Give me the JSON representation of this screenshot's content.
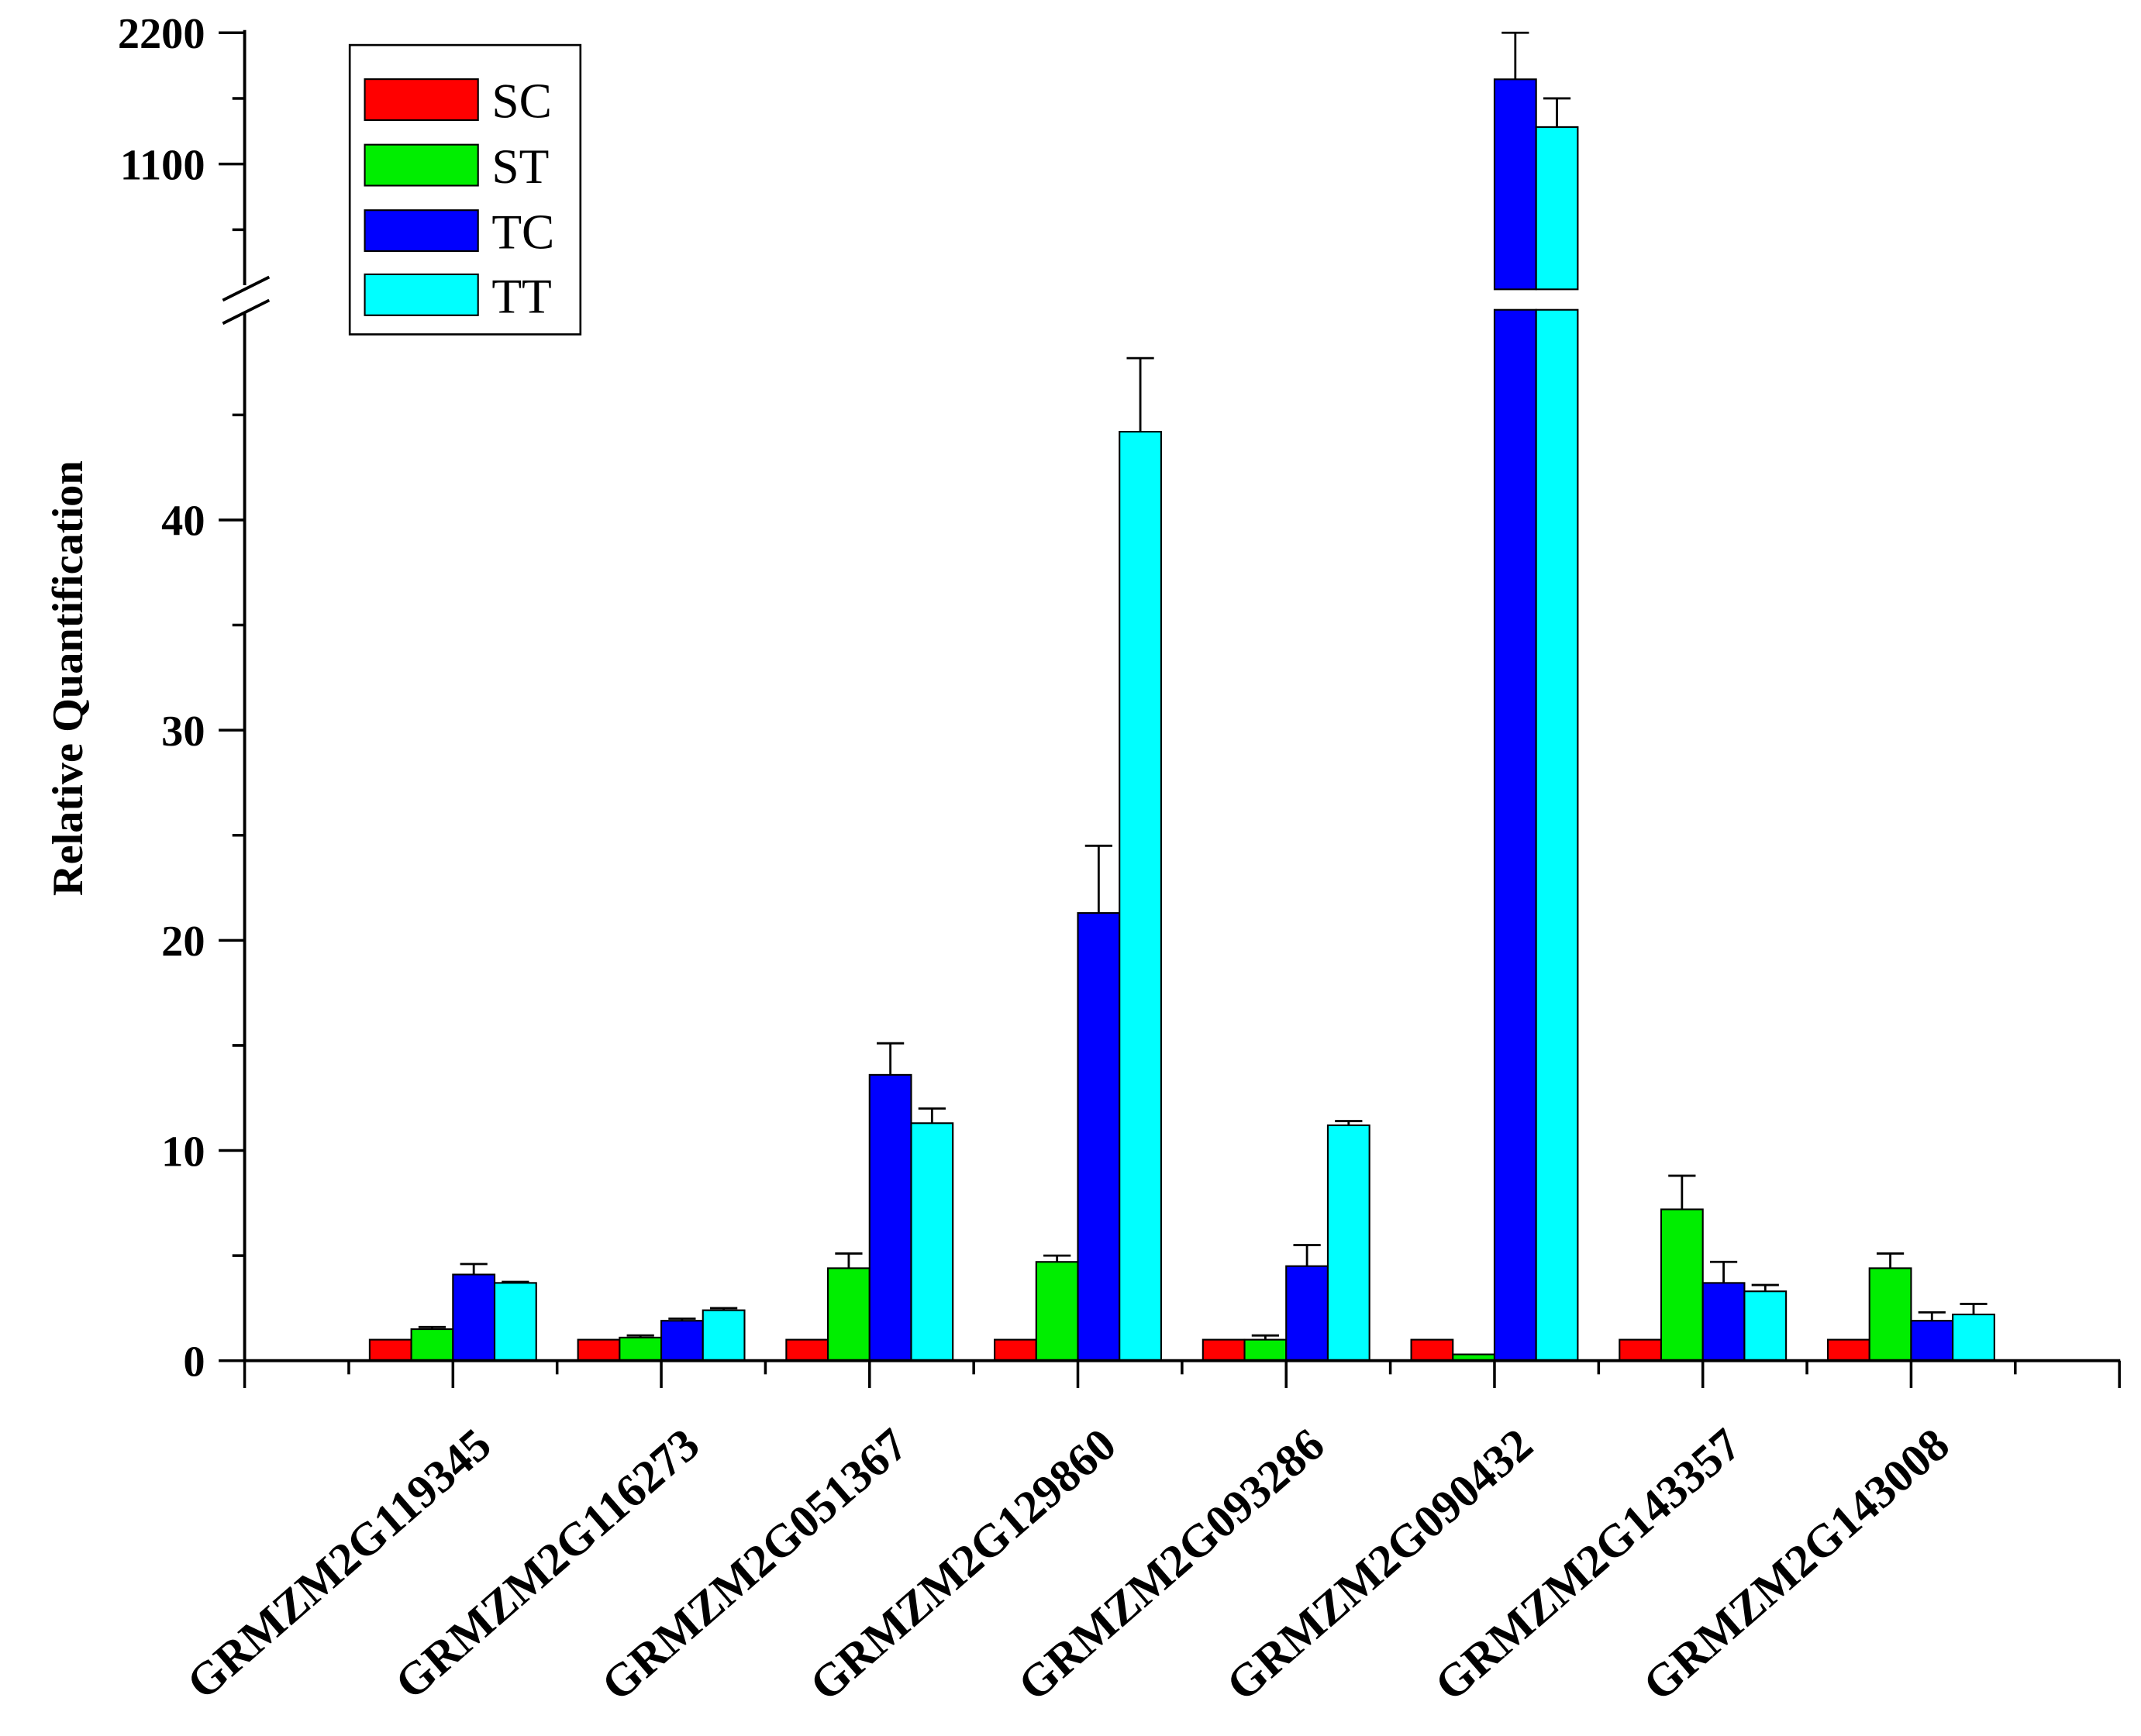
{
  "chart_data": {
    "type": "bar",
    "ylabel": "Relative Quantification",
    "categories": [
      "GRMZM2G119345",
      "GRMZM2G116273",
      "GRMZM2G051367",
      "GRMZM2G129860",
      "GRMZM2G093286",
      "GRMZM2G090432",
      "GRMZM2G143357",
      "GRMZM2G143008"
    ],
    "series": [
      {
        "name": "SC",
        "color": "#ff0000",
        "values": [
          1.0,
          1.0,
          1.0,
          1.0,
          1.0,
          1.0,
          1.0,
          1.0
        ],
        "errors_upper": [
          0,
          0,
          0,
          0,
          0,
          0,
          0,
          0
        ]
      },
      {
        "name": "ST",
        "color": "#00ee00",
        "values": [
          1.5,
          1.1,
          4.4,
          4.7,
          1.0,
          0.3,
          7.2,
          4.4
        ],
        "errors_upper": [
          0.1,
          0.1,
          0.7,
          0.3,
          0.2,
          0,
          1.6,
          0.7
        ]
      },
      {
        "name": "TC",
        "color": "#0000ff",
        "values": [
          4.1,
          1.9,
          13.6,
          21.3,
          4.5,
          1810,
          3.7,
          1.9
        ],
        "errors_upper": [
          0.5,
          0.1,
          1.5,
          3.2,
          1.0,
          390,
          1.0,
          0.4
        ]
      },
      {
        "name": "TT",
        "color": "#00ffff",
        "values": [
          3.7,
          2.4,
          11.3,
          44.2,
          11.2,
          1410,
          3.3,
          2.2
        ],
        "errors_upper": [
          0.05,
          0.1,
          0.7,
          3.5,
          0.2,
          240,
          0.3,
          0.5
        ]
      }
    ],
    "y_axis": {
      "broken": true,
      "lower_range": [
        0,
        50
      ],
      "upper_range": [
        50,
        2200
      ],
      "lower_ticks": [
        0,
        10,
        20,
        30,
        40
      ],
      "upper_ticks": [
        1100,
        2200
      ],
      "minor_ticks": [
        5,
        15,
        25,
        35,
        45,
        550,
        1650
      ]
    },
    "grid": false,
    "legend": {
      "position": "top-left"
    }
  }
}
